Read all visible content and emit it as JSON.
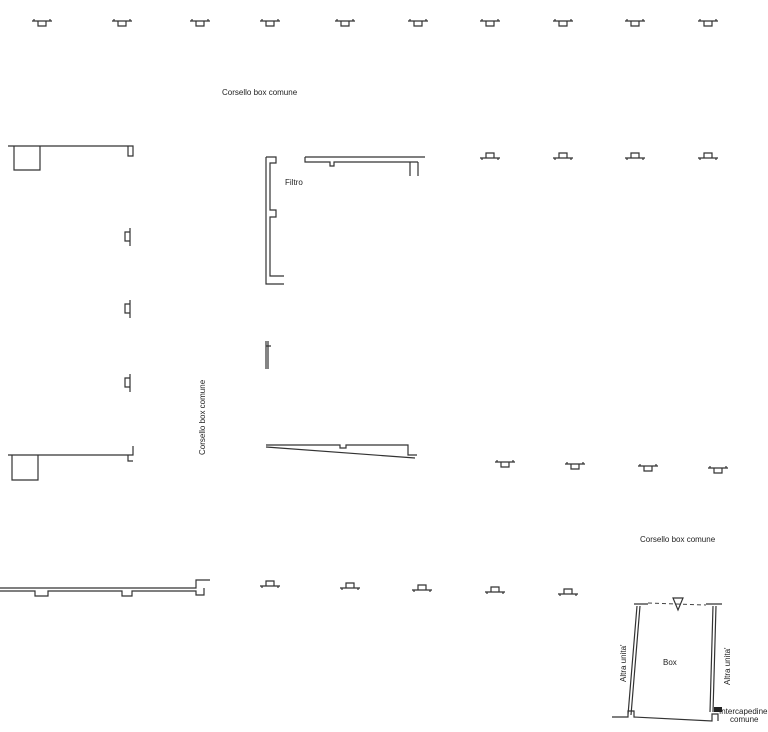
{
  "plan": {
    "labels": {
      "corridor_top": "Corsello box comune",
      "corridor_left": "Corsello box comune",
      "corridor_right": "Corsello box comune",
      "filter": "Filtro",
      "box": "Box",
      "other_unit_left": "Altra unita'",
      "other_unit_right": "Altra unita'",
      "cavity_line1": "Intercapedine",
      "cavity_line2": "comune"
    },
    "colors": {
      "line": "#333333",
      "background": "#ffffff"
    }
  }
}
